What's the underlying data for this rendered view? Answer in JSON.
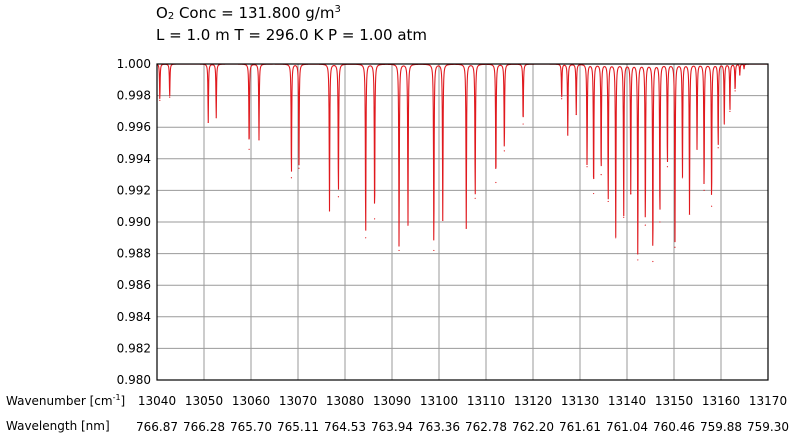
{
  "header": {
    "line1_prefix": "O",
    "line1_sub": "2",
    "line1_mid": " Conc = 131.800 g/m",
    "line1_sup": "3",
    "line2": "L = 1.0 m  T = 296.0 K  P = 1.00 atm"
  },
  "axis_labels": {
    "wavenumber_prefix": "Wavenumber [cm",
    "wavenumber_sup": "-1",
    "wavenumber_suffix": "]",
    "wavelength": "Wavelength [nm]"
  },
  "colors": {
    "line": "#e0191e",
    "grid": "#9a9a9a",
    "frame": "#000000"
  },
  "chart_data": {
    "type": "line",
    "title": "O2 Conc = 131.800 g/m3",
    "subtitle": "L = 1.0 m  T = 296.0 K  P = 1.00 atm",
    "xlabel": "Wavenumber [cm-1]",
    "xlabel_secondary": "Wavelength [nm]",
    "ylabel": "",
    "xlim": [
      13040,
      13170
    ],
    "ylim": [
      0.98,
      1.0
    ],
    "grid": true,
    "x_ticks": [
      13040,
      13050,
      13060,
      13070,
      13080,
      13090,
      13100,
      13110,
      13120,
      13130,
      13140,
      13150,
      13160,
      13170
    ],
    "secondary_ticks": [
      "766.87",
      "766.28",
      "765.70",
      "765.11",
      "764.53",
      "763.94",
      "763.36",
      "762.78",
      "762.20",
      "761.61",
      "761.04",
      "760.46",
      "759.88",
      "759.30"
    ],
    "y_ticks": [
      "1.000",
      "0.998",
      "0.996",
      "0.994",
      "0.992",
      "0.990",
      "0.988",
      "0.986",
      "0.984",
      "0.982",
      "0.980"
    ],
    "series": [
      {
        "lines": [
          {
            "x": 13040.6,
            "y": 0.9977
          },
          {
            "x": 13042.7,
            "y": 0.9979
          },
          {
            "x": 13050.9,
            "y": 0.9963
          },
          {
            "x": 13052.6,
            "y": 0.9966
          },
          {
            "x": 13059.6,
            "y": 0.9946
          },
          {
            "x": 13061.7,
            "y": 0.9952
          },
          {
            "x": 13068.6,
            "y": 0.9928
          },
          {
            "x": 13070.2,
            "y": 0.9934
          },
          {
            "x": 13076.7,
            "y": 0.9907
          },
          {
            "x": 13078.6,
            "y": 0.9916
          },
          {
            "x": 13084.4,
            "y": 0.989
          },
          {
            "x": 13086.3,
            "y": 0.9902
          },
          {
            "x": 13091.5,
            "y": 0.9882
          },
          {
            "x": 13093.4,
            "y": 0.9898
          },
          {
            "x": 13098.9,
            "y": 0.9882
          },
          {
            "x": 13100.8,
            "y": 0.9901
          },
          {
            "x": 13105.8,
            "y": 0.9896
          },
          {
            "x": 13107.7,
            "y": 0.9915
          },
          {
            "x": 13112.1,
            "y": 0.9925
          },
          {
            "x": 13113.9,
            "y": 0.9945
          },
          {
            "x": 13117.9,
            "y": 0.9962
          },
          {
            "x": 13126.1,
            "y": 0.9978
          },
          {
            "x": 13127.4,
            "y": 0.9955
          },
          {
            "x": 13129.2,
            "y": 0.9968
          },
          {
            "x": 13131.5,
            "y": 0.9935
          },
          {
            "x": 13132.9,
            "y": 0.9918
          },
          {
            "x": 13134.5,
            "y": 0.993
          },
          {
            "x": 13136.0,
            "y": 0.9913
          },
          {
            "x": 13137.6,
            "y": 0.989
          },
          {
            "x": 13139.3,
            "y": 0.9903
          },
          {
            "x": 13140.8,
            "y": 0.9918
          },
          {
            "x": 13142.3,
            "y": 0.9876
          },
          {
            "x": 13143.9,
            "y": 0.9898
          },
          {
            "x": 13145.5,
            "y": 0.9875
          },
          {
            "x": 13147.0,
            "y": 0.99
          },
          {
            "x": 13148.6,
            "y": 0.9935
          },
          {
            "x": 13150.2,
            "y": 0.9884
          },
          {
            "x": 13151.8,
            "y": 0.9928
          },
          {
            "x": 13153.3,
            "y": 0.9905
          },
          {
            "x": 13154.9,
            "y": 0.9946
          },
          {
            "x": 13156.4,
            "y": 0.992
          },
          {
            "x": 13158.0,
            "y": 0.991
          },
          {
            "x": 13159.4,
            "y": 0.9947
          },
          {
            "x": 13160.7,
            "y": 0.9962
          },
          {
            "x": 13161.9,
            "y": 0.997
          },
          {
            "x": 13163.0,
            "y": 0.9983
          },
          {
            "x": 13164.0,
            "y": 0.9993
          },
          {
            "x": 13164.9,
            "y": 0.9997
          }
        ]
      }
    ]
  }
}
